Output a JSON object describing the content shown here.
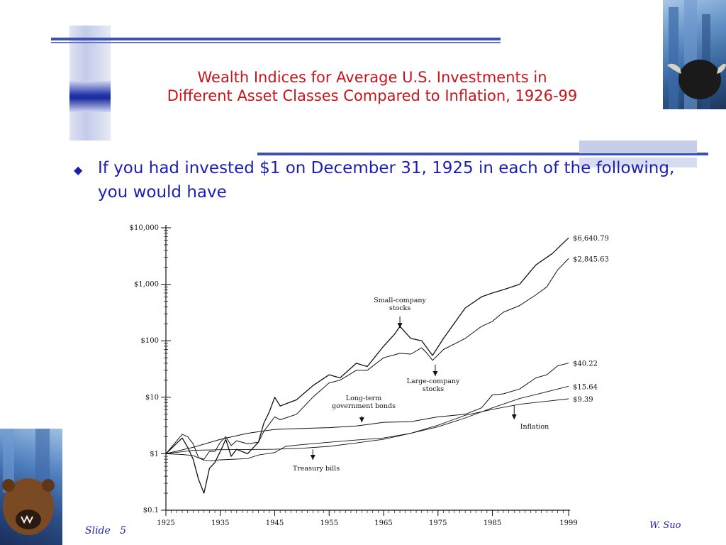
{
  "slide": {
    "title_line1": "Wealth Indices for Average U.S. Investments in",
    "title_line2": "Different Asset Classes Compared to Inflation, 1926-99",
    "bullet_text": "If you had invested $1 on December 31, 1925 in each of the following, you would have",
    "footer_label": "Slide",
    "footer_number": "5",
    "author": "W. Suo"
  },
  "colors": {
    "title": "#c4161c",
    "body_text": "#1b1eb0",
    "accent_bar": "#3d4fb8"
  },
  "chart_data": {
    "type": "line",
    "yscale": "log",
    "ylim": [
      0.1,
      10000
    ],
    "xlim": [
      1925,
      1999
    ],
    "y_ticks": [
      "$0.1",
      "$1",
      "$10",
      "$100",
      "$1,000",
      "$10,000"
    ],
    "x_ticks": [
      "1925",
      "1935",
      "1945",
      "1955",
      "1965",
      "1975",
      "1985",
      "1999"
    ],
    "grid": false,
    "series": [
      {
        "name": "Small-company stocks",
        "label": "Small-company\nstocks",
        "end_label": "$6,640.79",
        "x": [
          1925,
          1928,
          1929,
          1930,
          1931,
          1932,
          1933,
          1934,
          1935,
          1936,
          1937,
          1938,
          1940,
          1942,
          1943,
          1944,
          1945,
          1946,
          1949,
          1952,
          1955,
          1957,
          1960,
          1962,
          1965,
          1967,
          1968,
          1970,
          1972,
          1974,
          1976,
          1980,
          1983,
          1985,
          1987,
          1990,
          1993,
          1996,
          1999
        ],
        "y": [
          1,
          1.9,
          1.3,
          0.8,
          0.35,
          0.2,
          0.55,
          0.7,
          1.1,
          1.8,
          0.9,
          1.2,
          1.0,
          1.6,
          3.5,
          5.5,
          10,
          7,
          9,
          16,
          25,
          22,
          40,
          35,
          80,
          130,
          180,
          110,
          100,
          55,
          110,
          380,
          600,
          700,
          800,
          1000,
          2200,
          3500,
          6640.79
        ]
      },
      {
        "name": "Large-company stocks",
        "label": "Large-company\nstocks",
        "end_label": "$2,845.63",
        "x": [
          1925,
          1928,
          1929,
          1930,
          1931,
          1932,
          1933,
          1934,
          1935,
          1936,
          1937,
          1938,
          1940,
          1942,
          1943,
          1945,
          1946,
          1949,
          1952,
          1955,
          1957,
          1960,
          1962,
          1965,
          1968,
          1970,
          1972,
          1973,
          1974,
          1976,
          1980,
          1983,
          1985,
          1987,
          1990,
          1993,
          1995,
          1997,
          1999
        ],
        "y": [
          1,
          2.2,
          2.0,
          1.5,
          0.85,
          0.8,
          1.1,
          1.1,
          1.6,
          2.0,
          1.4,
          1.7,
          1.5,
          1.6,
          2.5,
          4.5,
          4.0,
          5,
          10,
          18,
          20,
          30,
          30,
          50,
          60,
          58,
          75,
          60,
          45,
          70,
          110,
          180,
          220,
          320,
          420,
          650,
          900,
          1800,
          2845.63
        ]
      },
      {
        "name": "Long-term government bonds",
        "label": "Long-term\ngovernment bonds",
        "end_label": "$40.22",
        "x": [
          1925,
          1930,
          1935,
          1940,
          1945,
          1950,
          1955,
          1960,
          1965,
          1970,
          1975,
          1980,
          1983,
          1985,
          1987,
          1990,
          1993,
          1995,
          1997,
          1999
        ],
        "y": [
          1,
          1.3,
          1.8,
          2.3,
          2.7,
          2.8,
          2.9,
          3.1,
          3.6,
          3.7,
          4.5,
          5.0,
          6.5,
          11,
          11.5,
          14,
          22,
          25,
          36,
          40.22
        ]
      },
      {
        "name": "Treasury bills",
        "label": "Treasury bills",
        "end_label": "$15.64",
        "x": [
          1925,
          1930,
          1935,
          1940,
          1945,
          1950,
          1955,
          1960,
          1965,
          1970,
          1975,
          1980,
          1985,
          1990,
          1995,
          1999
        ],
        "y": [
          1,
          1.15,
          1.18,
          1.19,
          1.2,
          1.25,
          1.35,
          1.55,
          1.8,
          2.3,
          3.0,
          4.3,
          6.5,
          9.5,
          12.5,
          15.64
        ]
      },
      {
        "name": "Inflation",
        "label": "Inflation",
        "end_label": "$9.39",
        "x": [
          1925,
          1928,
          1930,
          1932,
          1933,
          1935,
          1940,
          1942,
          1945,
          1947,
          1950,
          1955,
          1960,
          1965,
          1970,
          1975,
          1980,
          1985,
          1990,
          1995,
          1999
        ],
        "y": [
          1,
          0.97,
          0.93,
          0.77,
          0.75,
          0.78,
          0.82,
          0.95,
          1.05,
          1.35,
          1.45,
          1.6,
          1.75,
          1.9,
          2.3,
          3.2,
          4.8,
          6.1,
          7.5,
          8.5,
          9.39
        ]
      }
    ]
  }
}
